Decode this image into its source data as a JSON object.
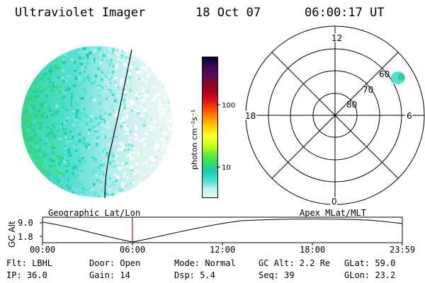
{
  "header": {
    "instrument": "Ultraviolet Imager",
    "date": "18 Oct 07",
    "time": "06:00:17 UT"
  },
  "colorbar": {
    "unit_label": "photon cm⁻²s⁻¹",
    "ticks": [
      "100",
      "10"
    ],
    "colors": [
      "#000033",
      "#3a0a52",
      "#5a0a5a",
      "#800a2a",
      "#b0001a",
      "#e0101a",
      "#ff5a00",
      "#ff9a00",
      "#ffd200",
      "#ffff33",
      "#c8ff1a",
      "#66ee33",
      "#33dd66",
      "#22ccaa",
      "#44e0d6",
      "#bff2ee",
      "#e8f7f5"
    ]
  },
  "polar_plot": {
    "mlt_labels": {
      "top": "12",
      "left": "18",
      "right": "6",
      "bottom": "0"
    },
    "lat_labels": [
      "60",
      "70",
      "80"
    ]
  },
  "timeline": {
    "y_axis_title": "GC Alt",
    "y_ticks": [
      "9.0",
      "1.8"
    ],
    "left_label": "Geographic Lat/Lon",
    "right_label": "Apex MLat/MLT",
    "x_ticks": [
      "00:00",
      "06:00",
      "12:00",
      "18:00",
      "23:59"
    ],
    "marker_color": "#b03040"
  },
  "status": {
    "filter": "Flt: LBHL",
    "door": "Door: Open",
    "mode": "Mode: Normal",
    "gc_alt": "GC Alt: 2.2 Re",
    "glat": "GLat:  59.0",
    "ip": "IP: 36.0",
    "gain": "Gain: 14",
    "dsp": "Dsp:    5.4",
    "seq": "Seq: 39",
    "glon": "GLon:  23.2"
  }
}
